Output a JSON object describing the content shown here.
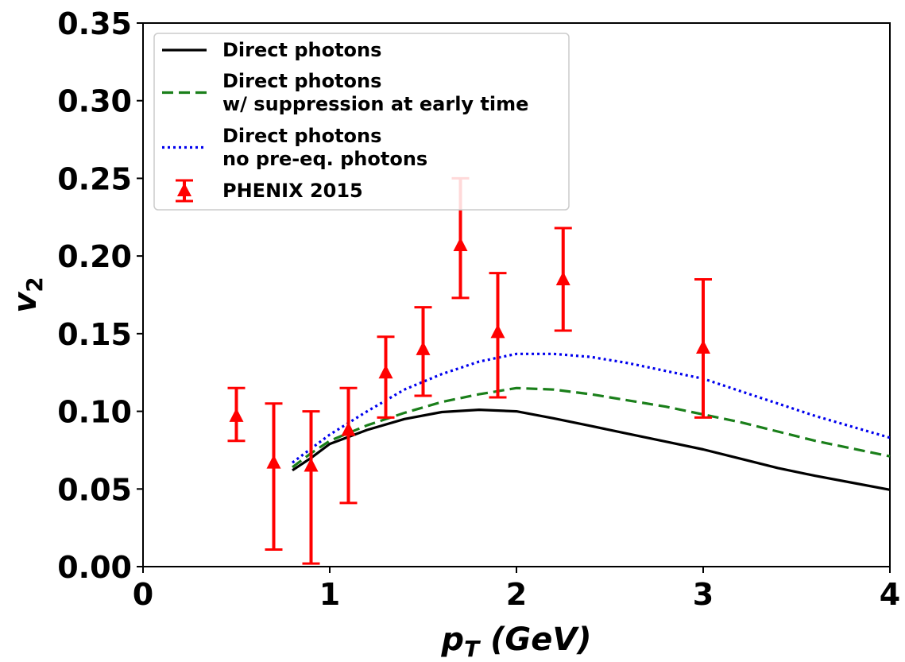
{
  "chart_data": {
    "type": "line",
    "xlabel_main": "p",
    "xlabel_sub": "T",
    "xlabel_unit": " (GeV)",
    "ylabel_main": "v",
    "ylabel_sub": "2",
    "xlim": [
      0,
      4
    ],
    "ylim": [
      0,
      0.35
    ],
    "xticks": [
      0,
      1,
      2,
      3,
      4
    ],
    "xtick_labels": [
      "0",
      "1",
      "2",
      "3",
      "4"
    ],
    "yticks": [
      0,
      0.05,
      0.1,
      0.15,
      0.2,
      0.25,
      0.3,
      0.35
    ],
    "ytick_labels": [
      "0.00",
      "0.05",
      "0.10",
      "0.15",
      "0.20",
      "0.25",
      "0.30",
      "0.35"
    ],
    "legend_position": "top-left",
    "series": [
      {
        "name": "Direct photons",
        "legend_lines": [
          "Direct photons"
        ],
        "style": "solid",
        "color": "#000000",
        "x": [
          0.8,
          0.9,
          1.0,
          1.2,
          1.4,
          1.6,
          1.8,
          2.0,
          2.2,
          2.4,
          2.6,
          2.8,
          3.0,
          3.2,
          3.4,
          3.6,
          3.8,
          4.0
        ],
        "y": [
          0.062,
          0.07,
          0.079,
          0.088,
          0.095,
          0.0995,
          0.101,
          0.1,
          0.0955,
          0.0905,
          0.0855,
          0.0805,
          0.0755,
          0.0695,
          0.0635,
          0.0585,
          0.054,
          0.0495
        ]
      },
      {
        "name": "Direct photons w/ suppression at early time",
        "legend_lines": [
          "Direct photons",
          "w/ suppression at early time"
        ],
        "style": "dashed",
        "color": "#1a7f1a",
        "x": [
          0.8,
          0.9,
          1.0,
          1.2,
          1.4,
          1.6,
          1.8,
          2.0,
          2.2,
          2.4,
          2.6,
          2.8,
          3.0,
          3.2,
          3.4,
          3.6,
          3.8,
          4.0
        ],
        "y": [
          0.064,
          0.073,
          0.081,
          0.091,
          0.099,
          0.106,
          0.111,
          0.115,
          0.114,
          0.111,
          0.107,
          0.103,
          0.098,
          0.093,
          0.087,
          0.081,
          0.076,
          0.071
        ]
      },
      {
        "name": "Direct photons no pre-eq. photons",
        "legend_lines": [
          "Direct photons",
          "no pre-eq. photons"
        ],
        "style": "dotted",
        "color": "#0000ee",
        "x": [
          0.8,
          0.9,
          1.0,
          1.2,
          1.4,
          1.6,
          1.8,
          2.0,
          2.2,
          2.4,
          2.6,
          2.8,
          3.0,
          3.2,
          3.4,
          3.6,
          3.8,
          4.0
        ],
        "y": [
          0.067,
          0.076,
          0.085,
          0.1,
          0.114,
          0.124,
          0.132,
          0.137,
          0.137,
          0.135,
          0.131,
          0.126,
          0.121,
          0.113,
          0.105,
          0.097,
          0.09,
          0.083
        ]
      },
      {
        "name": "PHENIX 2015",
        "legend_lines": [
          "PHENIX 2015"
        ],
        "style": "errorbar-triangle",
        "color": "#ff0000",
        "x": [
          0.5,
          0.7,
          0.9,
          1.1,
          1.3,
          1.5,
          1.7,
          1.9,
          2.25,
          3.0
        ],
        "y": [
          0.097,
          0.067,
          0.065,
          0.088,
          0.125,
          0.14,
          0.207,
          0.151,
          0.185,
          0.141
        ],
        "y_low": [
          0.081,
          0.011,
          0.002,
          0.041,
          0.096,
          0.11,
          0.173,
          0.109,
          0.152,
          0.096
        ],
        "y_high": [
          0.115,
          0.105,
          0.1,
          0.115,
          0.148,
          0.167,
          0.25,
          0.189,
          0.218,
          0.185
        ]
      }
    ]
  }
}
